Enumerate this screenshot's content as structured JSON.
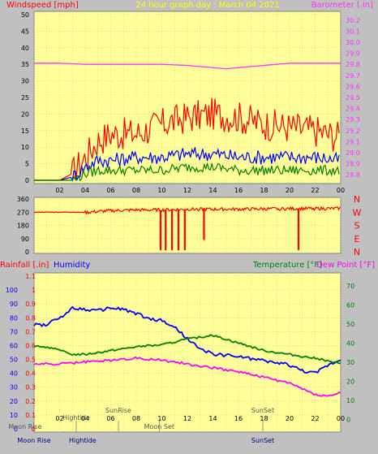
{
  "colors": {
    "panel_bg": "#ffff99",
    "frame_bg": "#c0c0c0",
    "grid": "#e8b2b2",
    "wind_gust": "#ff0000",
    "wind_avg": "#0000ff",
    "wind_min": "#008000",
    "barometer": "#ff33ff",
    "direction": "#ff0000",
    "humidity": "#0000ff",
    "temperature": "#008000",
    "dew_point": "#ff00ff",
    "title": "#ffff00"
  },
  "header": {
    "title": "24 hour graph day : March 04 2021",
    "left_label": "Windspeed [mph]",
    "right_label": "Barometer [.in]"
  },
  "direction_labels": [
    "N",
    "W",
    "S",
    "E",
    "N"
  ],
  "bottom_header": {
    "rain_label": "Rainfall [.in]",
    "humidity_label": "Humidity",
    "temp_label": "Temperature [°F]",
    "dew_label": "Dew Point [°F]"
  },
  "astro": {
    "top_row": [
      {
        "text": "Moon Rise",
        "hour": -0.7
      },
      {
        "text": "Hightide",
        "hour": 3.3
      },
      {
        "text": "SunRise",
        "hour": 6.6
      },
      {
        "text": "Moon Set",
        "hour": 9.8
      },
      {
        "text": "SunSet",
        "hour": 17.9
      }
    ],
    "bottom_row": [
      {
        "text": "Moon Rise",
        "hour": 0.0
      },
      {
        "text": "Hightide",
        "hour": 3.8
      },
      {
        "text": "SunSet",
        "hour": 17.9
      }
    ]
  },
  "chart_data": [
    {
      "type": "line",
      "title": "24 hour graph day : March 04 2021",
      "ylabel": "Windspeed [mph]",
      "y2label": "Barometer [.in]",
      "x_ticks": [
        "02",
        "04",
        "06",
        "08",
        "10",
        "12",
        "14",
        "16",
        "18",
        "20",
        "22",
        "00"
      ],
      "ylim": [
        0,
        50
      ],
      "y_ticks": [
        0,
        5,
        10,
        15,
        20,
        25,
        30,
        35,
        40,
        45,
        50
      ],
      "y2lim": [
        28.75,
        30.25
      ],
      "y2_ticks": [
        28.8,
        28.9,
        29.0,
        29.1,
        29.2,
        29.3,
        29.4,
        29.5,
        29.6,
        29.7,
        29.8,
        29.9,
        30.0,
        30.1,
        30.2
      ],
      "series": [
        {
          "name": "Wind gust",
          "axis": "left",
          "hours": [
            0,
            2,
            3,
            4,
            5,
            6,
            8,
            10,
            12,
            14,
            16,
            18,
            20,
            22,
            24
          ],
          "values": [
            0,
            0,
            2,
            7,
            12,
            14,
            14,
            17,
            19,
            20,
            19,
            17,
            16,
            15,
            13
          ]
        },
        {
          "name": "Wind average",
          "axis": "left",
          "hours": [
            0,
            2,
            3,
            4,
            5,
            6,
            8,
            10,
            12,
            14,
            16,
            18,
            20,
            22,
            24
          ],
          "values": [
            0,
            0,
            1,
            4,
            6,
            6,
            7,
            7,
            8,
            8,
            7,
            7,
            7,
            7,
            6
          ]
        },
        {
          "name": "Wind minimum",
          "axis": "left",
          "hours": [
            0,
            2,
            3,
            4,
            5,
            6,
            8,
            10,
            12,
            14,
            16,
            18,
            20,
            22,
            24
          ],
          "values": [
            0,
            0,
            0,
            2,
            3,
            3,
            3,
            3,
            4,
            4,
            3,
            3,
            3,
            3,
            3
          ]
        },
        {
          "name": "Barometer",
          "axis": "right",
          "hours": [
            0,
            2,
            4,
            6,
            8,
            10,
            12,
            14,
            15,
            16,
            18,
            20,
            22,
            24
          ],
          "values": [
            29.81,
            29.81,
            29.8,
            29.8,
            29.8,
            29.8,
            29.79,
            29.77,
            29.76,
            29.77,
            29.79,
            29.81,
            29.81,
            29.81
          ]
        }
      ]
    },
    {
      "type": "scatter",
      "ylabel": "Wind direction",
      "ylim": [
        0,
        360
      ],
      "y_ticks": [
        0,
        90,
        180,
        270,
        360
      ],
      "series": [
        {
          "name": "Direction",
          "hours": [
            0,
            2,
            3,
            4,
            5,
            6,
            8,
            10,
            12,
            14,
            16,
            18,
            20,
            22,
            24
          ],
          "values": [
            270,
            270,
            270,
            268,
            275,
            280,
            285,
            285,
            290,
            290,
            290,
            292,
            294,
            295,
            295
          ]
        }
      ],
      "drops": [
        {
          "hour": 9.9,
          "value": 10
        },
        {
          "hour": 10.3,
          "value": 10
        },
        {
          "hour": 10.8,
          "value": 10
        },
        {
          "hour": 11.3,
          "value": 10
        },
        {
          "hour": 11.8,
          "value": 10
        },
        {
          "hour": 13.3,
          "value": 80
        },
        {
          "hour": 20.7,
          "value": 10
        }
      ]
    },
    {
      "type": "line",
      "ylabel": "Rainfall [.in]",
      "y2label": "Temperature [°F]",
      "x_ticks": [
        "02",
        "04",
        "06",
        "08",
        "10",
        "12",
        "14",
        "16",
        "18",
        "20",
        "22",
        "00"
      ],
      "humidity_ticks": [
        0,
        10,
        20,
        30,
        40,
        50,
        60,
        70,
        80,
        90,
        100
      ],
      "rain_ticks": [
        0,
        0.1,
        0.2,
        0.3,
        0.4,
        0.5,
        0.6,
        0.7,
        0.8,
        0.9,
        1,
        1.1
      ],
      "temp_ticks": [
        0,
        10,
        20,
        30,
        40,
        50,
        60,
        70
      ],
      "humidity_lim": [
        0,
        110
      ],
      "temp_lim": [
        -5,
        75
      ],
      "series": [
        {
          "name": "Humidity",
          "axis": "humidity",
          "hours": [
            0,
            1,
            2,
            3,
            4,
            5,
            6,
            7,
            8,
            9,
            10,
            11,
            12,
            13,
            14,
            16,
            18,
            20,
            21,
            22,
            23,
            24
          ],
          "values": [
            75,
            75,
            80,
            87,
            86,
            85,
            87,
            86,
            83,
            79,
            78,
            73,
            65,
            57,
            54,
            52,
            49,
            46,
            42,
            40,
            46,
            50
          ]
        },
        {
          "name": "Temperature",
          "axis": "temp",
          "hours": [
            0,
            1,
            2,
            3,
            4,
            6,
            8,
            10,
            12,
            14,
            16,
            18,
            20,
            22,
            24
          ],
          "values": [
            38,
            38,
            36,
            34,
            34,
            36,
            38,
            39,
            42,
            44,
            40,
            36,
            34,
            32,
            29
          ]
        },
        {
          "name": "Dew Point",
          "axis": "temp",
          "hours": [
            0,
            2,
            4,
            6,
            8,
            10,
            12,
            14,
            16,
            18,
            20,
            21,
            22,
            23,
            24
          ],
          "values": [
            29,
            29,
            30,
            31,
            32,
            31,
            29,
            27,
            25,
            22,
            19,
            16,
            13,
            12,
            14
          ]
        }
      ]
    }
  ]
}
